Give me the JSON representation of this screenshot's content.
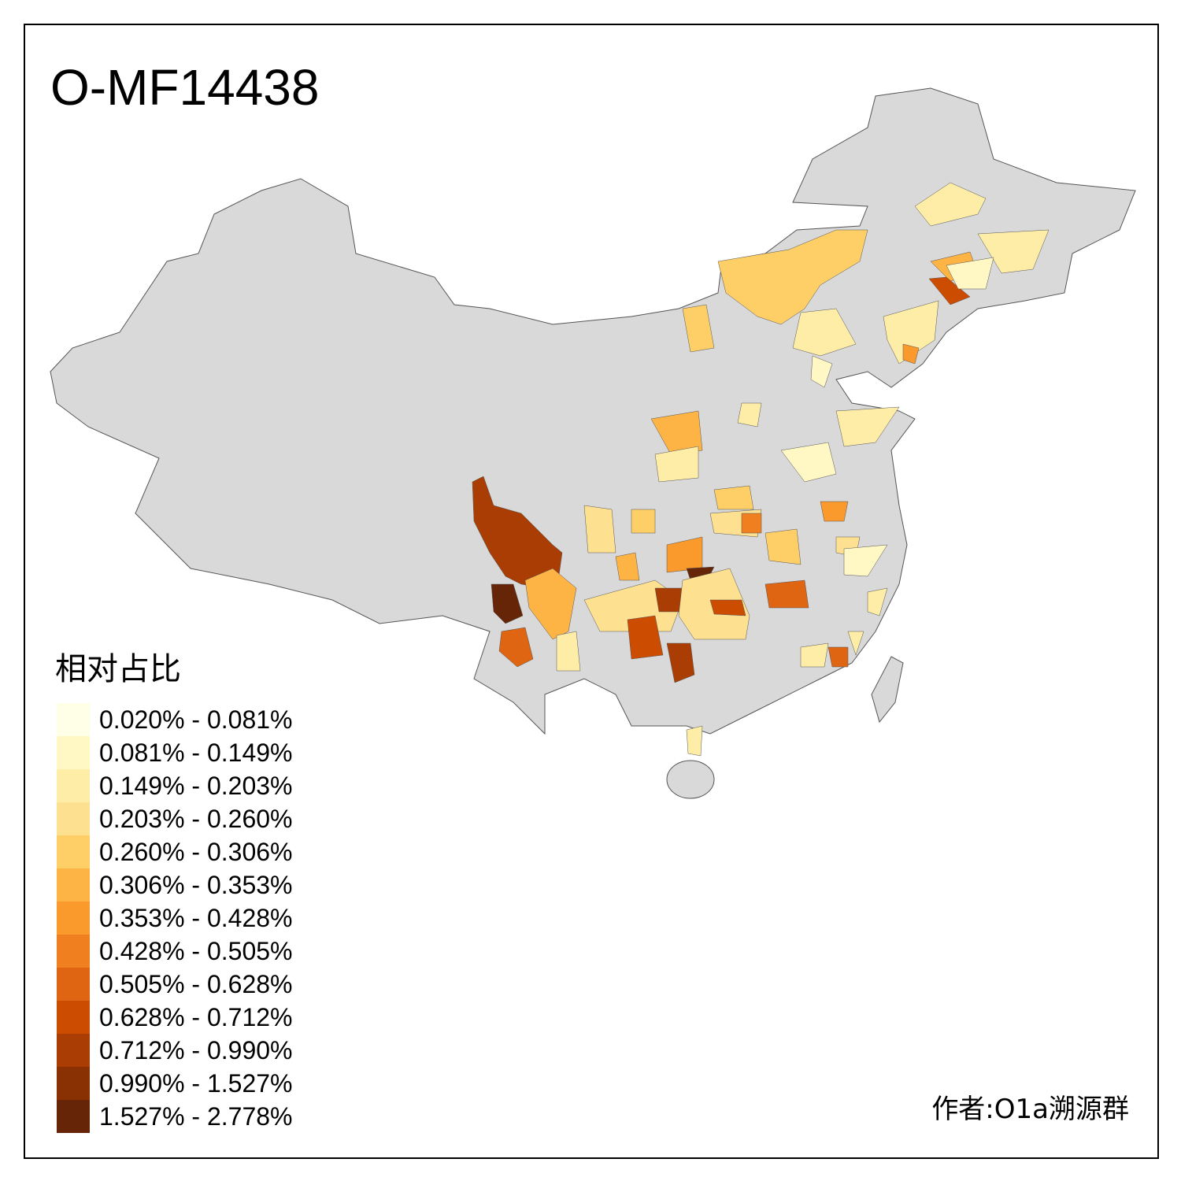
{
  "title": "O-MF14438",
  "legend": {
    "title": "相对占比",
    "items": [
      {
        "label": "0.020% - 0.081%",
        "color": "#FFFEE6"
      },
      {
        "label": "0.081% - 0.149%",
        "color": "#FFF7C4"
      },
      {
        "label": "0.149% - 0.203%",
        "color": "#FEEDA6"
      },
      {
        "label": "0.203% - 0.260%",
        "color": "#FEE190"
      },
      {
        "label": "0.260% - 0.306%",
        "color": "#FECE67"
      },
      {
        "label": "0.306% - 0.353%",
        "color": "#FEB445"
      },
      {
        "label": "0.353% - 0.428%",
        "color": "#FB9A2C"
      },
      {
        "label": "0.428% - 0.505%",
        "color": "#F0801F"
      },
      {
        "label": "0.505% - 0.628%",
        "color": "#E06513"
      },
      {
        "label": "0.628% - 0.712%",
        "color": "#CC4C02"
      },
      {
        "label": "0.712% - 0.990%",
        "color": "#A93D04"
      },
      {
        "label": "0.990% - 1.527%",
        "color": "#8A3104"
      },
      {
        "label": "1.527% - 2.778%",
        "color": "#662506"
      }
    ]
  },
  "no_data_color": "#D9D9D9",
  "author": "作者:O1a溯源群"
}
